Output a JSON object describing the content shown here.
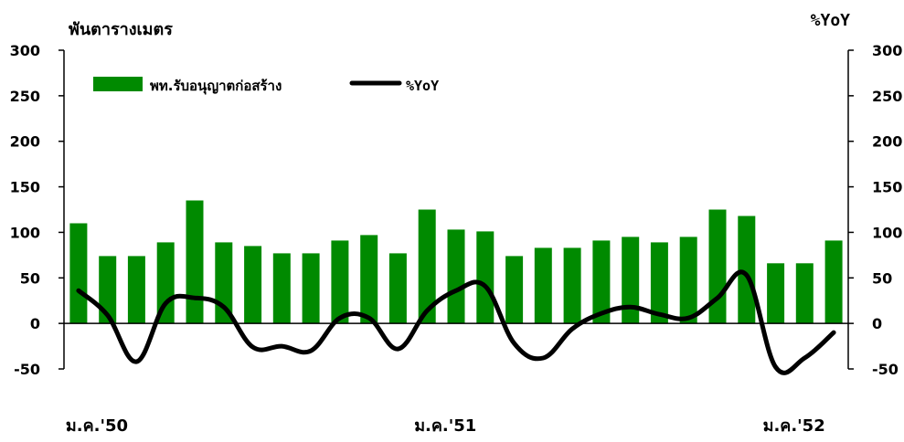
{
  "chart_data": {
    "type": "bar",
    "title": "",
    "left_axis_title": "พันตารางเมตร",
    "right_axis_title": "%YoY",
    "ylim": [
      -50,
      300
    ],
    "y_ticks": [
      300,
      250,
      200,
      150,
      100,
      50,
      0,
      -50
    ],
    "grid": false,
    "legend_position": "top-left",
    "x_labels": [
      {
        "index": 0,
        "label": "ม.ค.'50"
      },
      {
        "index": 12,
        "label": "ม.ค.'51"
      },
      {
        "index": 24,
        "label": "ม.ค.'52"
      }
    ],
    "series": [
      {
        "name": "พท.รับอนุญาตก่อสร้าง",
        "type": "bar",
        "axis": "left",
        "color": "#008a00",
        "values": [
          110,
          74,
          74,
          89,
          135,
          89,
          85,
          77,
          77,
          91,
          97,
          77,
          125,
          103,
          101,
          74,
          83,
          83,
          91,
          95,
          89,
          95,
          125,
          118,
          66,
          66,
          91
        ]
      },
      {
        "name": "%YoY",
        "type": "line",
        "axis": "right",
        "color": "#000000",
        "values": [
          36,
          9,
          -42,
          22,
          28,
          18,
          -26,
          -25,
          -30,
          6,
          6,
          -28,
          14,
          36,
          41,
          -22,
          -38,
          -6,
          11,
          18,
          10,
          6,
          28,
          53,
          -48,
          -38,
          -10
        ]
      }
    ]
  }
}
